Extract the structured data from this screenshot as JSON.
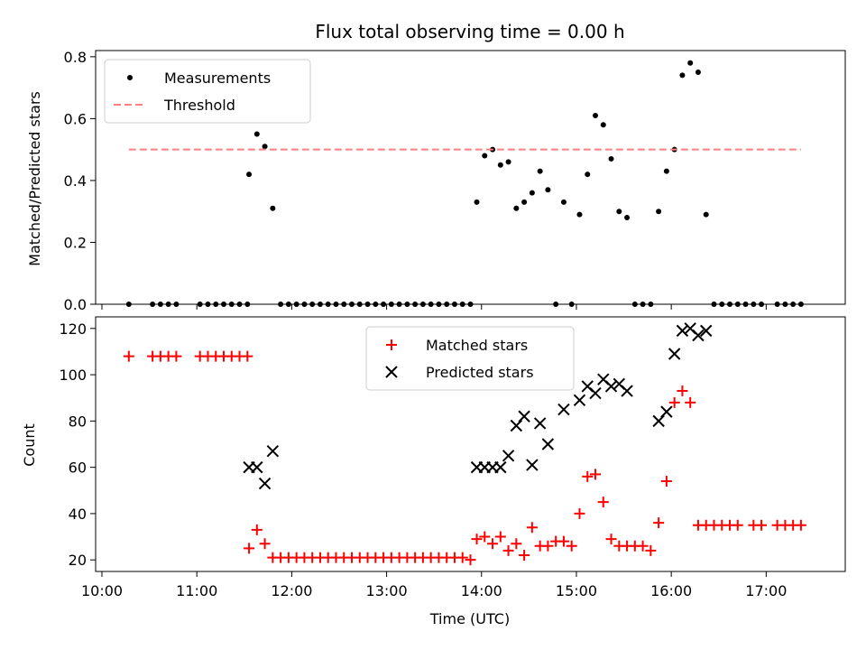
{
  "chart_data": [
    {
      "type": "scatter",
      "title": "Flux total observing time = 0.00 h",
      "xlabel": "",
      "ylabel": "Matched/Predicted stars",
      "ylim": [
        0,
        0.82
      ],
      "yticks": [
        "0.0",
        "0.2",
        "0.4",
        "0.6",
        "0.8"
      ],
      "x_range": [
        "09:56",
        "17:50"
      ],
      "legend_position": "upper-left",
      "colors": {
        "measurements": "#000000",
        "threshold": "#ff8080"
      },
      "series": [
        {
          "name": "Measurements",
          "marker": "dot",
          "points": [
            [
              "10:17",
              0.0
            ],
            [
              "10:32",
              0.0
            ],
            [
              "10:37",
              0.0
            ],
            [
              "10:42",
              0.0
            ],
            [
              "10:47",
              0.0
            ],
            [
              "11:02",
              0.0
            ],
            [
              "11:07",
              0.0
            ],
            [
              "11:12",
              0.0
            ],
            [
              "11:17",
              0.0
            ],
            [
              "11:22",
              0.0
            ],
            [
              "11:27",
              0.0
            ],
            [
              "11:32",
              0.0
            ],
            [
              "11:33",
              0.42
            ],
            [
              "11:38",
              0.55
            ],
            [
              "11:43",
              0.51
            ],
            [
              "11:48",
              0.31
            ],
            [
              "11:53",
              0.0
            ],
            [
              "11:58",
              0.0
            ],
            [
              "12:03",
              0.0
            ],
            [
              "12:08",
              0.0
            ],
            [
              "12:13",
              0.0
            ],
            [
              "12:18",
              0.0
            ],
            [
              "12:23",
              0.0
            ],
            [
              "12:28",
              0.0
            ],
            [
              "12:33",
              0.0
            ],
            [
              "12:38",
              0.0
            ],
            [
              "12:43",
              0.0
            ],
            [
              "12:48",
              0.0
            ],
            [
              "12:53",
              0.0
            ],
            [
              "12:58",
              0.0
            ],
            [
              "13:03",
              0.0
            ],
            [
              "13:08",
              0.0
            ],
            [
              "13:13",
              0.0
            ],
            [
              "13:18",
              0.0
            ],
            [
              "13:23",
              0.0
            ],
            [
              "13:28",
              0.0
            ],
            [
              "13:33",
              0.0
            ],
            [
              "13:38",
              0.0
            ],
            [
              "13:43",
              0.0
            ],
            [
              "13:48",
              0.0
            ],
            [
              "13:53",
              0.0
            ],
            [
              "13:57",
              0.33
            ],
            [
              "14:02",
              0.48
            ],
            [
              "14:07",
              0.5
            ],
            [
              "14:12",
              0.45
            ],
            [
              "14:17",
              0.46
            ],
            [
              "14:22",
              0.31
            ],
            [
              "14:27",
              0.33
            ],
            [
              "14:32",
              0.36
            ],
            [
              "14:37",
              0.43
            ],
            [
              "14:42",
              0.37
            ],
            [
              "14:47",
              0.0
            ],
            [
              "14:52",
              0.33
            ],
            [
              "14:57",
              0.0
            ],
            [
              "15:02",
              0.29
            ],
            [
              "15:07",
              0.42
            ],
            [
              "15:12",
              0.61
            ],
            [
              "15:17",
              0.58
            ],
            [
              "15:22",
              0.47
            ],
            [
              "15:27",
              0.3
            ],
            [
              "15:32",
              0.28
            ],
            [
              "15:37",
              0.0
            ],
            [
              "15:42",
              0.0
            ],
            [
              "15:47",
              0.0
            ],
            [
              "15:52",
              0.3
            ],
            [
              "15:57",
              0.43
            ],
            [
              "16:02",
              0.5
            ],
            [
              "16:07",
              0.74
            ],
            [
              "16:12",
              0.78
            ],
            [
              "16:17",
              0.75
            ],
            [
              "16:22",
              0.29
            ],
            [
              "16:27",
              0.0
            ],
            [
              "16:32",
              0.0
            ],
            [
              "16:37",
              0.0
            ],
            [
              "16:42",
              0.0
            ],
            [
              "16:47",
              0.0
            ],
            [
              "16:52",
              0.0
            ],
            [
              "16:57",
              0.0
            ],
            [
              "17:07",
              0.0
            ],
            [
              "17:12",
              0.0
            ],
            [
              "17:17",
              0.0
            ],
            [
              "17:22",
              0.0
            ]
          ]
        },
        {
          "name": "Threshold",
          "style": "dashed",
          "points": [
            [
              "10:17",
              0.5
            ],
            [
              "17:22",
              0.5
            ]
          ]
        }
      ]
    },
    {
      "type": "scatter",
      "title": "",
      "xlabel": "Time (UTC)",
      "ylabel": "Count",
      "ylim": [
        15,
        125
      ],
      "yticks": [
        "20",
        "40",
        "60",
        "80",
        "100",
        "120"
      ],
      "x_range": [
        "09:56",
        "17:50"
      ],
      "xticks": [
        "10:00",
        "11:00",
        "12:00",
        "13:00",
        "14:00",
        "15:00",
        "16:00",
        "17:00"
      ],
      "legend_position": "upper-center",
      "colors": {
        "matched": "#ff0000",
        "predicted": "#000000"
      },
      "series": [
        {
          "name": "Matched stars",
          "marker": "plus",
          "points": [
            [
              "10:17",
              108
            ],
            [
              "10:32",
              108
            ],
            [
              "10:37",
              108
            ],
            [
              "10:42",
              108
            ],
            [
              "10:47",
              108
            ],
            [
              "11:02",
              108
            ],
            [
              "11:07",
              108
            ],
            [
              "11:12",
              108
            ],
            [
              "11:17",
              108
            ],
            [
              "11:22",
              108
            ],
            [
              "11:27",
              108
            ],
            [
              "11:32",
              108
            ],
            [
              "11:33",
              25
            ],
            [
              "11:38",
              33
            ],
            [
              "11:43",
              27
            ],
            [
              "11:48",
              21
            ],
            [
              "11:53",
              21
            ],
            [
              "11:58",
              21
            ],
            [
              "12:03",
              21
            ],
            [
              "12:08",
              21
            ],
            [
              "12:13",
              21
            ],
            [
              "12:18",
              21
            ],
            [
              "12:23",
              21
            ],
            [
              "12:28",
              21
            ],
            [
              "12:33",
              21
            ],
            [
              "12:38",
              21
            ],
            [
              "12:43",
              21
            ],
            [
              "12:48",
              21
            ],
            [
              "12:53",
              21
            ],
            [
              "12:58",
              21
            ],
            [
              "13:03",
              21
            ],
            [
              "13:08",
              21
            ],
            [
              "13:13",
              21
            ],
            [
              "13:18",
              21
            ],
            [
              "13:23",
              21
            ],
            [
              "13:28",
              21
            ],
            [
              "13:33",
              21
            ],
            [
              "13:38",
              21
            ],
            [
              "13:43",
              21
            ],
            [
              "13:48",
              21
            ],
            [
              "13:53",
              20
            ],
            [
              "13:57",
              29
            ],
            [
              "14:02",
              30
            ],
            [
              "14:07",
              27
            ],
            [
              "14:12",
              30
            ],
            [
              "14:17",
              24
            ],
            [
              "14:22",
              27
            ],
            [
              "14:27",
              22
            ],
            [
              "14:32",
              34
            ],
            [
              "14:37",
              26
            ],
            [
              "14:42",
              26
            ],
            [
              "14:47",
              28
            ],
            [
              "14:52",
              28
            ],
            [
              "14:57",
              26
            ],
            [
              "15:02",
              40
            ],
            [
              "15:07",
              56
            ],
            [
              "15:12",
              57
            ],
            [
              "15:17",
              45
            ],
            [
              "15:22",
              29
            ],
            [
              "15:27",
              26
            ],
            [
              "15:32",
              26
            ],
            [
              "15:37",
              26
            ],
            [
              "15:42",
              26
            ],
            [
              "15:47",
              24
            ],
            [
              "15:52",
              36
            ],
            [
              "15:57",
              54
            ],
            [
              "16:02",
              88
            ],
            [
              "16:07",
              93
            ],
            [
              "16:12",
              88
            ],
            [
              "16:17",
              35
            ],
            [
              "16:22",
              35
            ],
            [
              "16:27",
              35
            ],
            [
              "16:32",
              35
            ],
            [
              "16:37",
              35
            ],
            [
              "16:42",
              35
            ],
            [
              "16:52",
              35
            ],
            [
              "16:57",
              35
            ],
            [
              "17:07",
              35
            ],
            [
              "17:12",
              35
            ],
            [
              "17:17",
              35
            ],
            [
              "17:22",
              35
            ]
          ]
        },
        {
          "name": "Predicted stars",
          "marker": "x",
          "points": [
            [
              "11:33",
              60
            ],
            [
              "11:38",
              60
            ],
            [
              "11:43",
              53
            ],
            [
              "11:48",
              67
            ],
            [
              "13:57",
              60
            ],
            [
              "14:02",
              60
            ],
            [
              "14:07",
              60
            ],
            [
              "14:12",
              60
            ],
            [
              "14:17",
              65
            ],
            [
              "14:22",
              78
            ],
            [
              "14:27",
              82
            ],
            [
              "14:32",
              61
            ],
            [
              "14:37",
              79
            ],
            [
              "14:42",
              70
            ],
            [
              "14:52",
              85
            ],
            [
              "15:02",
              89
            ],
            [
              "15:07",
              95
            ],
            [
              "15:12",
              92
            ],
            [
              "15:17",
              98
            ],
            [
              "15:22",
              95
            ],
            [
              "15:27",
              96
            ],
            [
              "15:32",
              93
            ],
            [
              "15:52",
              80
            ],
            [
              "15:57",
              84
            ],
            [
              "16:02",
              109
            ],
            [
              "16:07",
              119
            ],
            [
              "16:12",
              120
            ],
            [
              "16:17",
              117
            ],
            [
              "16:22",
              119
            ]
          ]
        }
      ]
    }
  ]
}
